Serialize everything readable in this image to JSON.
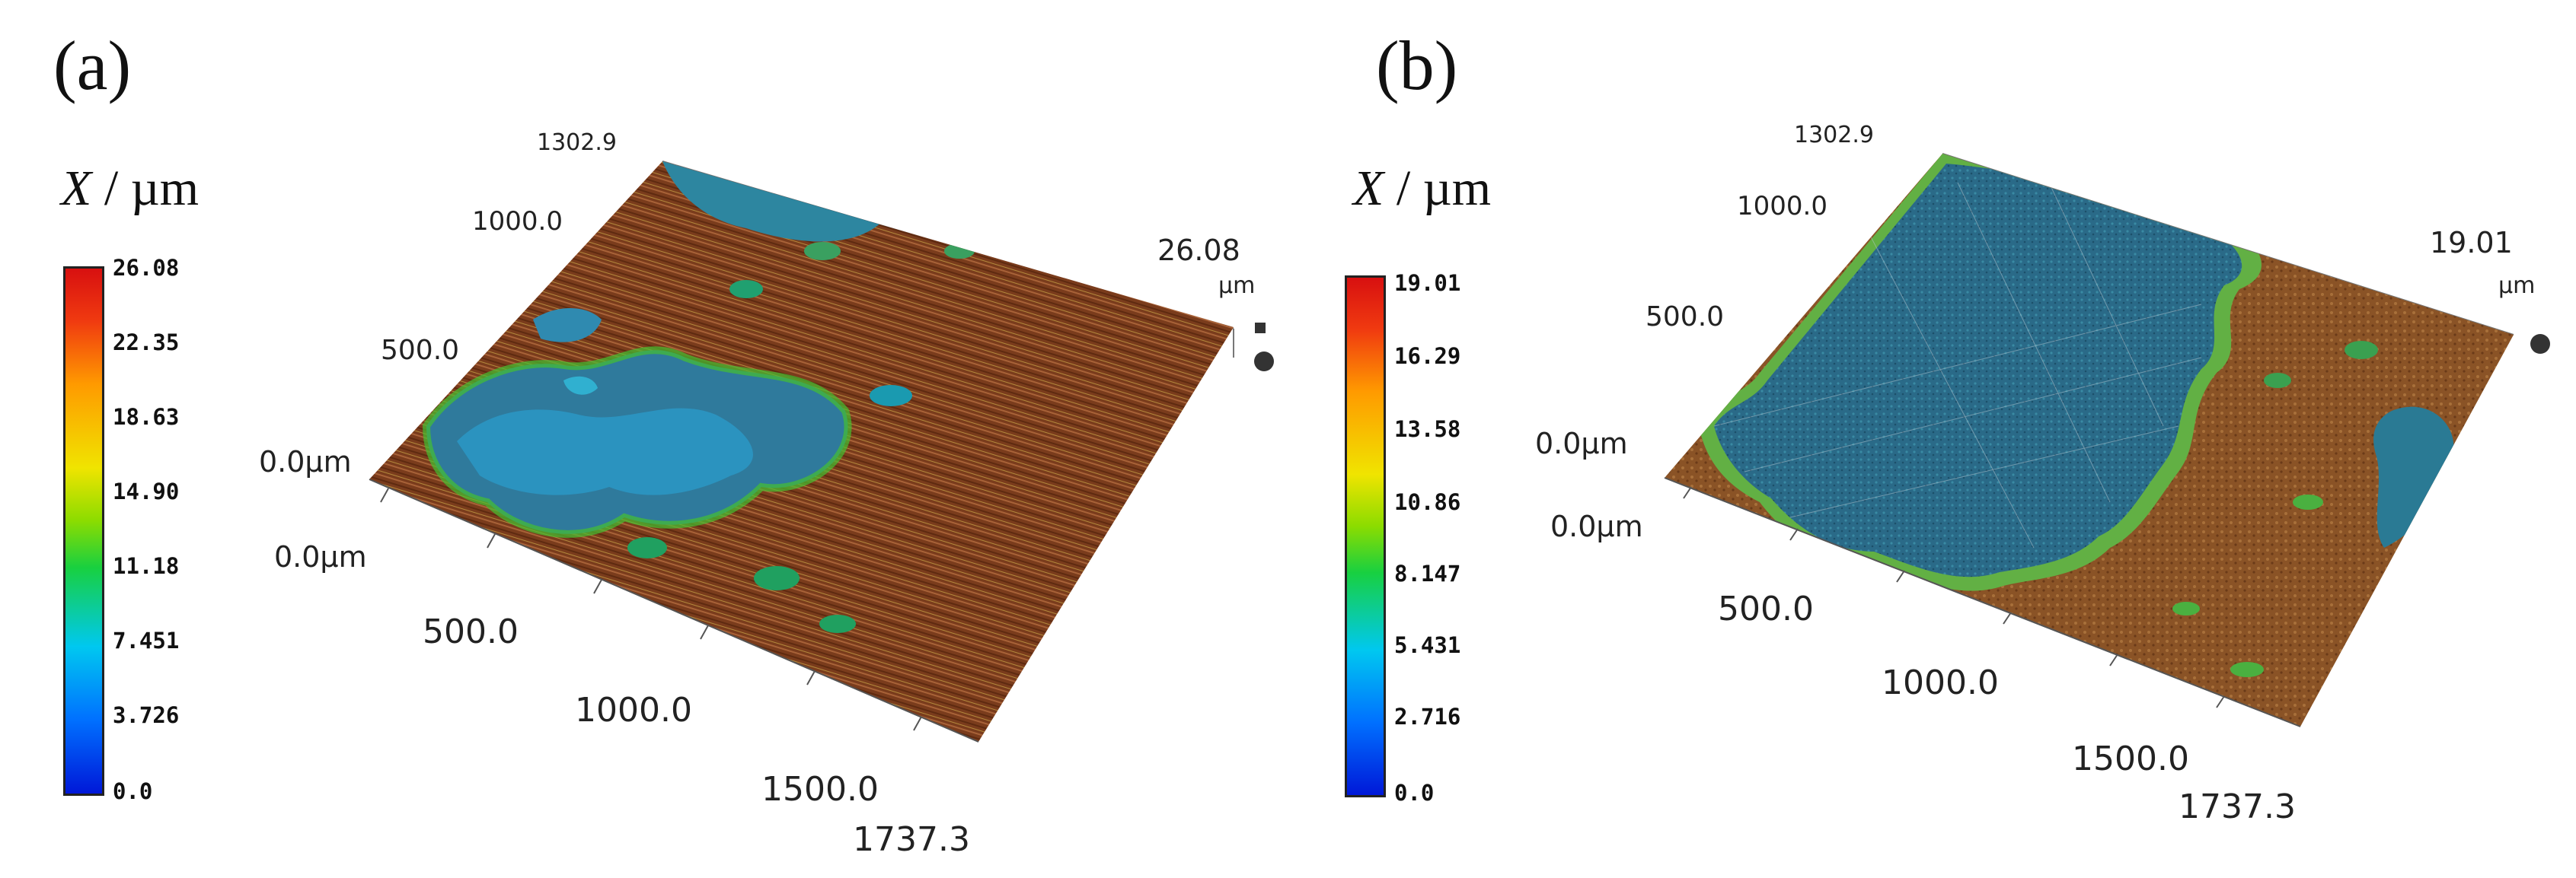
{
  "panels": [
    {
      "label": "(a)",
      "quantity_symbol": "X",
      "quantity_unit": "/ µm",
      "colorbar_ticks": [
        "26.08",
        "22.35",
        "18.63",
        "14.90",
        "11.18",
        "7.451",
        "3.726",
        "0.0"
      ],
      "surface": {
        "y_top": "1302.9",
        "y_1000": "1000.0",
        "y_500": "500.0",
        "y_0": "0.0µm",
        "x_0": "0.0µm",
        "x_500": "500.0",
        "x_1000": "1000.0",
        "x_1500": "1500.0",
        "x_max": "1737.3",
        "z_max": "26.08",
        "z_unit": "µm"
      }
    },
    {
      "label": "(b)",
      "quantity_symbol": "X",
      "quantity_unit": "/ µm",
      "colorbar_ticks": [
        "19.01",
        "16.29",
        "13.58",
        "10.86",
        "8.147",
        "5.431",
        "2.716",
        "0.0"
      ],
      "surface": {
        "y_top": "1302.9",
        "y_1000": "1000.0",
        "y_500": "500.0",
        "y_0": "0.0µm",
        "x_0": "0.0µm",
        "x_500": "500.0",
        "x_1000": "1000.0",
        "x_1500": "1500.0",
        "x_max": "1737.3",
        "z_max": "19.01",
        "z_unit": "µm"
      }
    }
  ],
  "colors": {
    "high": "#d81010",
    "mid": "#18d040",
    "low": "#0018d8",
    "surface_a": "#7a3c1c",
    "surface_b": "#8a5326",
    "blue_region": "#2a7a94"
  }
}
